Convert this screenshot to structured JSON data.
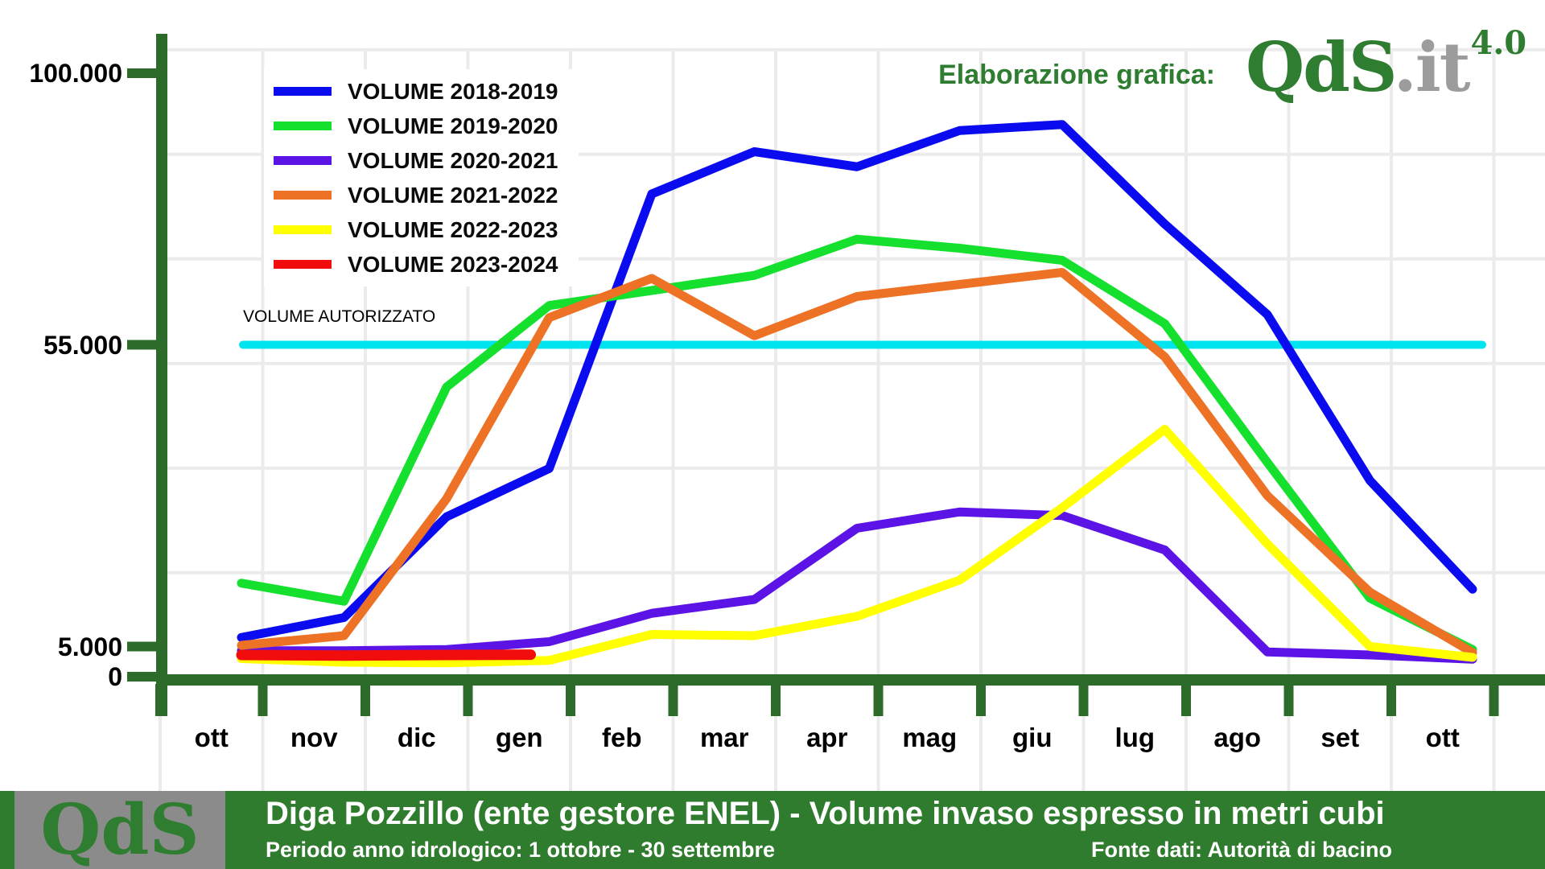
{
  "branding": {
    "elaborazione": "Elaborazione grafica:",
    "logo_qds": "QdS",
    "logo_it": ".it",
    "logo_version": "4.0"
  },
  "banner": {
    "logo": "QdS",
    "title": "Diga Pozzillo (ente gestore ENEL) - Volume invaso espresso in metri cubi",
    "subtitle_left": "Periodo anno idrologico: 1 ottobre - 30 settembre",
    "subtitle_right": "Fonte dati: Autorità di bacino"
  },
  "chart_data": {
    "type": "line",
    "title": "Diga Pozzillo (ente gestore ENEL) - Volume invaso espresso in metri cubi",
    "categories": [
      "ott",
      "nov",
      "dic",
      "gen",
      "feb",
      "mar",
      "apr",
      "mag",
      "giu",
      "lug",
      "ago",
      "set",
      "ott"
    ],
    "y_ticks": [
      {
        "value": 100000,
        "label": "100.000"
      },
      {
        "value": 55000,
        "label": "55.000"
      },
      {
        "value": 5000,
        "label": "5.000"
      },
      {
        "value": 0,
        "label": "0"
      }
    ],
    "ylim": [
      0,
      107000
    ],
    "grid": true,
    "legend_position": "top-left",
    "reference_line": {
      "label": "VOLUME AUTORIZZATO",
      "value": 55000,
      "color": "#00e4f0"
    },
    "series": [
      {
        "name": "VOLUME 2018-2019",
        "color": "#0b0bf0",
        "values": [
          6500,
          9800,
          26500,
          34500,
          80000,
          87000,
          84500,
          90500,
          91500,
          75000,
          60000,
          32500,
          14500
        ]
      },
      {
        "name": "VOLUME 2019-2020",
        "color": "#15e02e",
        "values": [
          15500,
          12500,
          48000,
          61500,
          64000,
          66500,
          72500,
          71000,
          69000,
          58500,
          35500,
          13000,
          4500
        ]
      },
      {
        "name": "VOLUME 2020-2021",
        "color": "#5b13e6",
        "values": [
          4300,
          4300,
          4500,
          5800,
          10500,
          12800,
          24600,
          27300,
          26700,
          21000,
          4100,
          3600,
          2900
        ]
      },
      {
        "name": "VOLUME 2021-2022",
        "color": "#ee7226",
        "values": [
          5200,
          6800,
          29500,
          59500,
          66000,
          56500,
          63000,
          65000,
          67000,
          53000,
          30000,
          14000,
          4000
        ]
      },
      {
        "name": "VOLUME 2022-2023",
        "color": "#ffff00",
        "values": [
          3000,
          2400,
          2300,
          2700,
          7000,
          6800,
          10000,
          16000,
          28000,
          41000,
          22000,
          5000,
          3200
        ]
      },
      {
        "name": "VOLUME 2023-2024",
        "color": "#f20d0d",
        "values": [
          3600,
          3500,
          3600,
          3650
        ],
        "x_indices": [
          0,
          1,
          2,
          2.82
        ]
      }
    ],
    "colors": {
      "axis_green": "#2c6b29",
      "grid": "#ebebeb"
    }
  }
}
